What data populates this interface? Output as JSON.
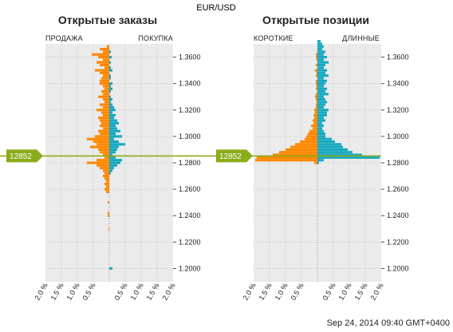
{
  "symbol": "EUR/USD",
  "timestamp": "Sep 24, 2014 09:40 GMT+0400",
  "current_price_label": "12852",
  "colors": {
    "sell": "#ff8800",
    "buy": "#19a9bf",
    "price_line": "#8aac1a",
    "plot_bg": "#ebebeb"
  },
  "panels": {
    "orders": {
      "title": "Открытые заказы",
      "left_label": "ПРОДАЖА",
      "right_label": "ПОКУПКА"
    },
    "positions": {
      "title": "Открытые позиции",
      "left_label": "КОРОТКИЕ",
      "right_label": "ДЛИННЫЕ"
    }
  },
  "chart_data": [
    {
      "type": "bar",
      "orientation": "horizontal-butterfly",
      "title": "Открытые заказы",
      "left_series": "ПРОДАЖА",
      "right_series": "ПОКУПКА",
      "current_price": 1.2852,
      "y_ticks": [
        "1.3600",
        "1.3400",
        "1.3200",
        "1.3000",
        "1.2800",
        "1.2600",
        "1.2400",
        "1.2200",
        "1.2000"
      ],
      "x_ticks_left": [
        "2.0 %",
        "1.5 %",
        "1.0 %",
        "0.5 %"
      ],
      "x_ticks_right": [
        "0.5 %",
        "1.0 %",
        "1.5 %",
        "2.0 %"
      ],
      "ylim": [
        1.19,
        1.37
      ],
      "xlim": [
        -2.0,
        2.0
      ],
      "grid": true,
      "bins": [
        {
          "price": 1.368,
          "sell": 0.08,
          "buy": 0.0
        },
        {
          "price": 1.366,
          "sell": 0.3,
          "buy": 0.0
        },
        {
          "price": 1.364,
          "sell": 0.2,
          "buy": 0.05
        },
        {
          "price": 1.362,
          "sell": 0.55,
          "buy": 0.0
        },
        {
          "price": 1.36,
          "sell": 0.35,
          "buy": 0.08
        },
        {
          "price": 1.358,
          "sell": 0.2,
          "buy": 0.0
        },
        {
          "price": 1.356,
          "sell": 0.4,
          "buy": 0.05
        },
        {
          "price": 1.354,
          "sell": 0.3,
          "buy": 0.0
        },
        {
          "price": 1.352,
          "sell": 0.15,
          "buy": 0.05
        },
        {
          "price": 1.35,
          "sell": 0.45,
          "buy": 0.1
        },
        {
          "price": 1.348,
          "sell": 0.3,
          "buy": 0.0
        },
        {
          "price": 1.346,
          "sell": 0.2,
          "buy": 0.05
        },
        {
          "price": 1.344,
          "sell": 0.25,
          "buy": 0.05
        },
        {
          "price": 1.342,
          "sell": 0.3,
          "buy": 0.0
        },
        {
          "price": 1.34,
          "sell": 0.3,
          "buy": 0.1
        },
        {
          "price": 1.338,
          "sell": 0.2,
          "buy": 0.05
        },
        {
          "price": 1.336,
          "sell": 0.15,
          "buy": 0.1
        },
        {
          "price": 1.334,
          "sell": 0.25,
          "buy": 0.05
        },
        {
          "price": 1.332,
          "sell": 0.2,
          "buy": 0.0
        },
        {
          "price": 1.33,
          "sell": 0.35,
          "buy": 0.05
        },
        {
          "price": 1.328,
          "sell": 0.2,
          "buy": 0.1
        },
        {
          "price": 1.326,
          "sell": 0.15,
          "buy": 0.05
        },
        {
          "price": 1.324,
          "sell": 0.3,
          "buy": 0.1
        },
        {
          "price": 1.322,
          "sell": 0.2,
          "buy": 0.15
        },
        {
          "price": 1.32,
          "sell": 0.4,
          "buy": 0.2
        },
        {
          "price": 1.318,
          "sell": 0.25,
          "buy": 0.1
        },
        {
          "price": 1.316,
          "sell": 0.2,
          "buy": 0.2
        },
        {
          "price": 1.314,
          "sell": 0.35,
          "buy": 0.15
        },
        {
          "price": 1.312,
          "sell": 0.3,
          "buy": 0.25
        },
        {
          "price": 1.31,
          "sell": 0.25,
          "buy": 0.3
        },
        {
          "price": 1.308,
          "sell": 0.3,
          "buy": 0.2
        },
        {
          "price": 1.306,
          "sell": 0.2,
          "buy": 0.25
        },
        {
          "price": 1.304,
          "sell": 0.35,
          "buy": 0.35
        },
        {
          "price": 1.302,
          "sell": 0.3,
          "buy": 0.2
        },
        {
          "price": 1.3,
          "sell": 0.45,
          "buy": 0.4
        },
        {
          "price": 1.298,
          "sell": 0.7,
          "buy": 0.15
        },
        {
          "price": 1.296,
          "sell": 0.5,
          "buy": 0.3
        },
        {
          "price": 1.294,
          "sell": 0.4,
          "buy": 0.5
        },
        {
          "price": 1.292,
          "sell": 0.6,
          "buy": 0.3
        },
        {
          "price": 1.29,
          "sell": 0.35,
          "buy": 0.25
        },
        {
          "price": 1.288,
          "sell": 0.3,
          "buy": 0.2
        },
        {
          "price": 1.286,
          "sell": 0.2,
          "buy": 0.1
        },
        {
          "price": 1.284,
          "sell": 0.15,
          "buy": 0.2
        },
        {
          "price": 1.282,
          "sell": 0.4,
          "buy": 0.4
        },
        {
          "price": 1.28,
          "sell": 0.7,
          "buy": 0.35
        },
        {
          "price": 1.278,
          "sell": 0.4,
          "buy": 0.25
        },
        {
          "price": 1.276,
          "sell": 0.3,
          "buy": 0.15
        },
        {
          "price": 1.274,
          "sell": 0.2,
          "buy": 0.1
        },
        {
          "price": 1.272,
          "sell": 0.15,
          "buy": 0.05
        },
        {
          "price": 1.27,
          "sell": 0.2,
          "buy": 0.0
        },
        {
          "price": 1.268,
          "sell": 0.15,
          "buy": 0.0
        },
        {
          "price": 1.266,
          "sell": 0.1,
          "buy": 0.0
        },
        {
          "price": 1.264,
          "sell": 0.15,
          "buy": 0.0
        },
        {
          "price": 1.262,
          "sell": 0.1,
          "buy": 0.0
        },
        {
          "price": 1.26,
          "sell": 0.15,
          "buy": 0.0
        },
        {
          "price": 1.258,
          "sell": 0.1,
          "buy": 0.0
        },
        {
          "price": 1.25,
          "sell": 0.05,
          "buy": 0.0
        },
        {
          "price": 1.242,
          "sell": 0.05,
          "buy": 0.0
        },
        {
          "price": 1.24,
          "sell": 0.05,
          "buy": 0.0
        },
        {
          "price": 1.23,
          "sell": 0.03,
          "buy": 0.0
        },
        {
          "price": 1.2,
          "sell": 0.0,
          "buy": 0.1
        }
      ]
    },
    {
      "type": "bar",
      "orientation": "horizontal-butterfly",
      "title": "Открытые позиции",
      "left_series": "КОРОТКИЕ",
      "right_series": "ДЛИННЫЕ",
      "current_price": 1.2852,
      "y_ticks": [
        "1.3600",
        "1.3400",
        "1.3200",
        "1.3000",
        "1.2800",
        "1.2600",
        "1.2400",
        "1.2200",
        "1.2000"
      ],
      "x_ticks_left": [
        "2.0 %",
        "1.5 %",
        "1.0 %",
        "0.5 %"
      ],
      "x_ticks_right": [
        "0.5 %",
        "1.0 %",
        "1.5 %",
        "2.0 %"
      ],
      "ylim": [
        1.19,
        1.37
      ],
      "xlim": [
        -2.0,
        2.0
      ],
      "grid": true,
      "bins": [
        {
          "price": 1.372,
          "sell": 0.0,
          "buy": 0.1
        },
        {
          "price": 1.37,
          "sell": 0.0,
          "buy": 0.15
        },
        {
          "price": 1.368,
          "sell": 0.0,
          "buy": 0.2
        },
        {
          "price": 1.366,
          "sell": 0.0,
          "buy": 0.15
        },
        {
          "price": 1.364,
          "sell": 0.0,
          "buy": 0.25
        },
        {
          "price": 1.362,
          "sell": 0.05,
          "buy": 0.2
        },
        {
          "price": 1.36,
          "sell": 0.05,
          "buy": 0.3
        },
        {
          "price": 1.358,
          "sell": 0.03,
          "buy": 0.2
        },
        {
          "price": 1.356,
          "sell": 0.0,
          "buy": 0.35
        },
        {
          "price": 1.354,
          "sell": 0.05,
          "buy": 0.25
        },
        {
          "price": 1.352,
          "sell": 0.0,
          "buy": 0.2
        },
        {
          "price": 1.35,
          "sell": 0.08,
          "buy": 0.3
        },
        {
          "price": 1.348,
          "sell": 0.03,
          "buy": 0.25
        },
        {
          "price": 1.346,
          "sell": 0.05,
          "buy": 0.35
        },
        {
          "price": 1.344,
          "sell": 0.0,
          "buy": 0.2
        },
        {
          "price": 1.342,
          "sell": 0.05,
          "buy": 0.3
        },
        {
          "price": 1.34,
          "sell": 0.05,
          "buy": 0.25
        },
        {
          "price": 1.338,
          "sell": 0.03,
          "buy": 0.2
        },
        {
          "price": 1.336,
          "sell": 0.05,
          "buy": 0.3
        },
        {
          "price": 1.334,
          "sell": 0.0,
          "buy": 0.25
        },
        {
          "price": 1.332,
          "sell": 0.05,
          "buy": 0.35
        },
        {
          "price": 1.33,
          "sell": 0.08,
          "buy": 0.2
        },
        {
          "price": 1.328,
          "sell": 0.05,
          "buy": 0.25
        },
        {
          "price": 1.326,
          "sell": 0.03,
          "buy": 0.3
        },
        {
          "price": 1.324,
          "sell": 0.05,
          "buy": 0.25
        },
        {
          "price": 1.322,
          "sell": 0.05,
          "buy": 0.2
        },
        {
          "price": 1.32,
          "sell": 0.1,
          "buy": 0.35
        },
        {
          "price": 1.318,
          "sell": 0.08,
          "buy": 0.3
        },
        {
          "price": 1.316,
          "sell": 0.12,
          "buy": 0.3
        },
        {
          "price": 1.314,
          "sell": 0.1,
          "buy": 0.2
        },
        {
          "price": 1.312,
          "sell": 0.15,
          "buy": 0.25
        },
        {
          "price": 1.31,
          "sell": 0.12,
          "buy": 0.15
        },
        {
          "price": 1.308,
          "sell": 0.2,
          "buy": 0.2
        },
        {
          "price": 1.306,
          "sell": 0.15,
          "buy": 0.15
        },
        {
          "price": 1.304,
          "sell": 0.25,
          "buy": 0.2
        },
        {
          "price": 1.302,
          "sell": 0.3,
          "buy": 0.25
        },
        {
          "price": 1.3,
          "sell": 0.35,
          "buy": 0.25
        },
        {
          "price": 1.298,
          "sell": 0.4,
          "buy": 0.45
        },
        {
          "price": 1.296,
          "sell": 0.55,
          "buy": 0.55
        },
        {
          "price": 1.294,
          "sell": 0.7,
          "buy": 0.75
        },
        {
          "price": 1.292,
          "sell": 0.85,
          "buy": 0.8
        },
        {
          "price": 1.29,
          "sell": 1.0,
          "buy": 0.95
        },
        {
          "price": 1.288,
          "sell": 1.2,
          "buy": 1.1
        },
        {
          "price": 1.286,
          "sell": 1.4,
          "buy": 1.4
        },
        {
          "price": 1.284,
          "sell": 1.9,
          "buy": 1.95
        },
        {
          "price": 1.282,
          "sell": 1.95,
          "buy": 0.2
        },
        {
          "price": 1.28,
          "sell": 0.1,
          "buy": 0.05
        }
      ]
    }
  ]
}
